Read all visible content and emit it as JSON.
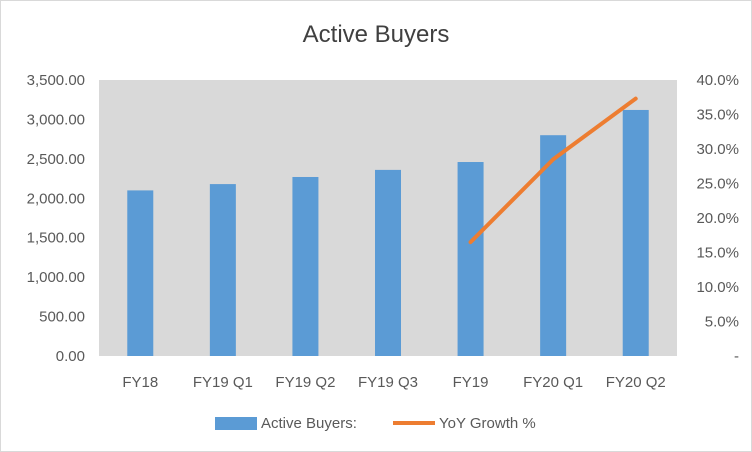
{
  "chart_data": {
    "type": "bar",
    "title": "Active Buyers",
    "categories": [
      "FY18",
      "FY19 Q1",
      "FY19 Q2",
      "FY19 Q3",
      "FY19",
      "FY20 Q1",
      "FY20 Q2"
    ],
    "series": [
      {
        "name": "Active Buyers:",
        "type": "bar",
        "axis": "left",
        "color": "#5b9bd5",
        "values": [
          2100,
          2180,
          2270,
          2360,
          2460,
          2800,
          3120
        ]
      },
      {
        "name": "YoY Growth %",
        "type": "line",
        "axis": "right",
        "color": "#ed7d31",
        "values": [
          null,
          null,
          null,
          null,
          16.5,
          28.5,
          37.3
        ]
      }
    ],
    "y_left": {
      "lim": [
        0,
        3500
      ],
      "ticks": [
        0,
        500,
        1000,
        1500,
        2000,
        2500,
        3000,
        3500
      ],
      "tick_labels": [
        "0.00",
        "500.00",
        "1,000.00",
        "1,500.00",
        "2,000.00",
        "2,500.00",
        "3,000.00",
        "3,500.00"
      ]
    },
    "y_right": {
      "lim": [
        0,
        40
      ],
      "ticks": [
        0,
        5,
        10,
        15,
        20,
        25,
        30,
        35,
        40
      ],
      "tick_labels": [
        "-",
        "5.0%",
        "10.0%",
        "15.0%",
        "20.0%",
        "25.0%",
        "30.0%",
        "35.0%",
        "40.0%"
      ]
    },
    "plot_background": "#d9d9d9",
    "grid": false,
    "legend_position": "bottom"
  }
}
